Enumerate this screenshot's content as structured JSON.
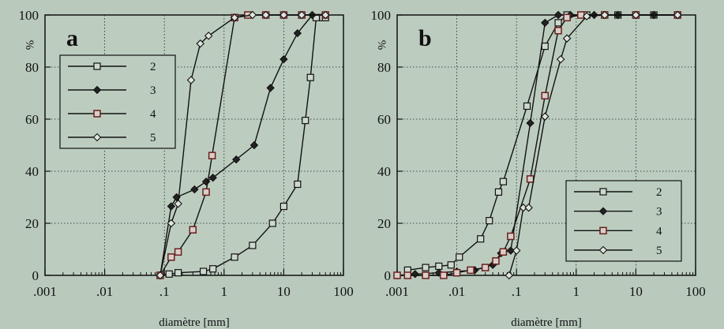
{
  "chart_data": [
    {
      "type": "line",
      "panel_label": "a",
      "xlabel": "diamètre [mm]",
      "ylabel": "%",
      "x_scale": "log",
      "xlim": [
        0.001,
        100
      ],
      "ylim": [
        0,
        100
      ],
      "x_tick_labels": [
        ".001",
        ".01",
        ".1",
        "1",
        "10",
        "100"
      ],
      "y_tick_labels": [
        "0",
        "20",
        "40",
        "60",
        "80",
        "100"
      ],
      "grid": true,
      "legend_position": "upper-left",
      "series": [
        {
          "name": "2",
          "marker": "square",
          "points": [
            [
              0.085,
              0
            ],
            [
              0.12,
              0.5
            ],
            [
              0.17,
              1
            ],
            [
              0.45,
              1.5
            ],
            [
              0.65,
              2.5
            ],
            [
              1.5,
              7
            ],
            [
              3,
              11.5
            ],
            [
              6.5,
              20
            ],
            [
              10,
              26.5
            ],
            [
              17,
              35
            ],
            [
              23,
              59.5
            ],
            [
              28,
              76
            ],
            [
              35,
              99
            ],
            [
              45,
              99
            ],
            [
              50,
              99
            ]
          ]
        },
        {
          "name": "3",
          "marker": "diamond-filled",
          "points": [
            [
              0.085,
              0
            ],
            [
              0.13,
              26.5
            ],
            [
              0.16,
              30
            ],
            [
              0.32,
              33
            ],
            [
              0.5,
              36
            ],
            [
              0.65,
              37.5
            ],
            [
              1.6,
              44.5
            ],
            [
              3.2,
              50
            ],
            [
              6,
              72
            ],
            [
              10,
              83
            ],
            [
              17,
              93
            ],
            [
              30,
              100
            ],
            [
              50,
              100
            ]
          ]
        },
        {
          "name": "4",
          "marker": "square",
          "points": [
            [
              0.085,
              0
            ],
            [
              0.13,
              7
            ],
            [
              0.17,
              9
            ],
            [
              0.3,
              17.5
            ],
            [
              0.5,
              32
            ],
            [
              0.63,
              46
            ],
            [
              1.5,
              99
            ],
            [
              2.5,
              100
            ],
            [
              5,
              100
            ],
            [
              10,
              100
            ],
            [
              20,
              100
            ],
            [
              50,
              100
            ]
          ]
        },
        {
          "name": "5",
          "marker": "diamond-open",
          "points": [
            [
              0.085,
              0
            ],
            [
              0.13,
              20
            ],
            [
              0.17,
              27.5
            ],
            [
              0.28,
              75
            ],
            [
              0.4,
              89
            ],
            [
              0.55,
              92
            ],
            [
              1.5,
              99
            ],
            [
              3,
              100
            ],
            [
              5,
              100
            ],
            [
              10,
              100
            ],
            [
              20,
              100
            ],
            [
              50,
              100
            ]
          ]
        }
      ]
    },
    {
      "type": "line",
      "panel_label": "b",
      "xlabel": "diamètre [mm]",
      "ylabel": "%",
      "x_scale": "log",
      "xlim": [
        0.001,
        100
      ],
      "ylim": [
        0,
        100
      ],
      "x_tick_labels": [
        ".001",
        ".01",
        ".1",
        "1",
        "10",
        "100"
      ],
      "y_tick_labels": [
        "0",
        "20",
        "40",
        "60",
        "80",
        "100"
      ],
      "grid": true,
      "legend_position": "lower-right",
      "series": [
        {
          "name": "2",
          "marker": "square",
          "points": [
            [
              0.0015,
              2
            ],
            [
              0.003,
              3
            ],
            [
              0.005,
              3.5
            ],
            [
              0.008,
              4
            ],
            [
              0.011,
              7
            ],
            [
              0.025,
              14
            ],
            [
              0.035,
              21
            ],
            [
              0.05,
              32
            ],
            [
              0.06,
              36
            ],
            [
              0.15,
              65
            ],
            [
              0.3,
              88
            ],
            [
              0.5,
              97
            ],
            [
              0.7,
              100
            ],
            [
              1.5,
              100
            ],
            [
              3,
              100
            ],
            [
              5,
              100
            ],
            [
              10,
              100
            ],
            [
              20,
              100
            ],
            [
              50,
              100
            ]
          ]
        },
        {
          "name": "3",
          "marker": "diamond-filled",
          "points": [
            [
              0.001,
              0
            ],
            [
              0.002,
              0.5
            ],
            [
              0.005,
              1
            ],
            [
              0.01,
              1.5
            ],
            [
              0.02,
              2
            ],
            [
              0.04,
              4
            ],
            [
              0.055,
              8.5
            ],
            [
              0.08,
              9.5
            ],
            [
              0.17,
              58.5
            ],
            [
              0.3,
              97
            ],
            [
              0.5,
              100
            ],
            [
              0.8,
              100
            ],
            [
              2,
              100
            ],
            [
              5,
              100
            ],
            [
              20,
              100
            ],
            [
              50,
              100
            ]
          ]
        },
        {
          "name": "4",
          "marker": "square",
          "points": [
            [
              0.001,
              0
            ],
            [
              0.0015,
              0
            ],
            [
              0.003,
              0
            ],
            [
              0.006,
              0
            ],
            [
              0.01,
              1
            ],
            [
              0.017,
              2
            ],
            [
              0.03,
              3
            ],
            [
              0.045,
              5.5
            ],
            [
              0.06,
              9
            ],
            [
              0.08,
              15
            ],
            [
              0.17,
              37
            ],
            [
              0.3,
              69
            ],
            [
              0.5,
              94
            ],
            [
              0.7,
              99
            ],
            [
              1.2,
              100
            ],
            [
              3,
              100
            ],
            [
              10,
              100
            ],
            [
              50,
              100
            ]
          ]
        },
        {
          "name": "5",
          "marker": "diamond-open",
          "points": [
            [
              0.075,
              0
            ],
            [
              0.1,
              9.5
            ],
            [
              0.13,
              26
            ],
            [
              0.16,
              26
            ],
            [
              0.3,
              61
            ],
            [
              0.55,
              83
            ],
            [
              0.7,
              91
            ],
            [
              1.5,
              99.5
            ],
            [
              3,
              100
            ],
            [
              10,
              100
            ],
            [
              50,
              100
            ]
          ]
        }
      ]
    }
  ]
}
